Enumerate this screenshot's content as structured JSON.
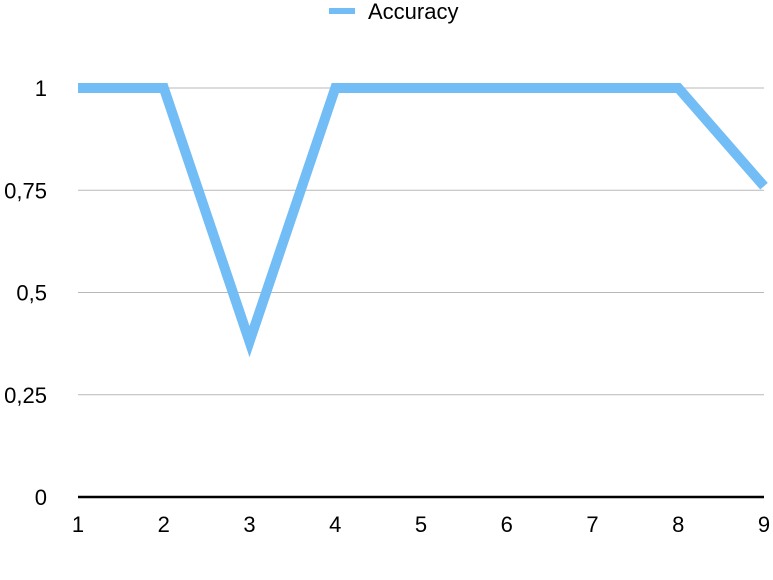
{
  "chart_data": {
    "type": "line",
    "title": "",
    "xlabel": "",
    "ylabel": "",
    "x": [
      1,
      2,
      3,
      4,
      5,
      6,
      7,
      8,
      9
    ],
    "x_tick_labels": [
      "1",
      "2",
      "3",
      "4",
      "5",
      "6",
      "7",
      "8",
      "9"
    ],
    "y_ticks": [
      0,
      0.25,
      0.5,
      0.75,
      1
    ],
    "y_tick_labels": [
      "0",
      "0,25",
      "0,5",
      "0,75",
      "1"
    ],
    "ylim": [
      0,
      1
    ],
    "xlim": [
      1,
      9
    ],
    "grid": true,
    "legend_position": "top-center",
    "series": [
      {
        "name": "Accuracy",
        "values": [
          1,
          1,
          0.38,
          1,
          1,
          1,
          1,
          1,
          0.76
        ],
        "color": "#72bdf6"
      }
    ],
    "colors": {
      "gridline": "#b8b8b8",
      "baseline": "#000000"
    }
  }
}
